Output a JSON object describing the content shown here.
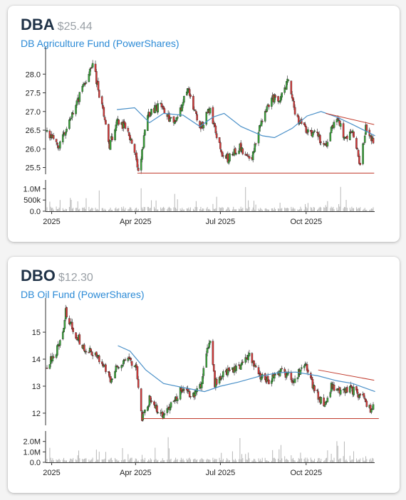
{
  "cards": [
    {
      "ticker": "DBA",
      "price": "$25.44",
      "name": "DB Agriculture Fund (PowerShares)",
      "chart_data": {
        "type": "candlestick",
        "x_range": [
          "2024-12-27",
          "2025-12-12"
        ],
        "x_ticks": [
          {
            "date": "2025-01-01",
            "label": "2025"
          },
          {
            "date": "2025-04-01",
            "label": "Apr 2025"
          },
          {
            "date": "2025-07-01",
            "label": "Jul 2025"
          },
          {
            "date": "2025-10-01",
            "label": "Oct 2025"
          }
        ],
        "price_ticks": [
          {
            "value": 25.5,
            "label": "25.5"
          },
          {
            "value": 26.0,
            "label": "26.0"
          },
          {
            "value": 26.5,
            "label": "26.5"
          },
          {
            "value": 27.0,
            "label": "27.0"
          },
          {
            "value": 27.5,
            "label": "27.5"
          },
          {
            "value": 28.0,
            "label": "28.0"
          }
        ],
        "ylim": [
          25.32,
          28.5
        ],
        "volume_ticks": [
          {
            "value": 0,
            "label": "0.0"
          },
          {
            "value": 500000,
            "label": "500k"
          },
          {
            "value": 1000000,
            "label": "1.0M"
          }
        ],
        "volume_max": 1300000,
        "price_path": [
          [
            "2024-12-27",
            26.45
          ],
          [
            "2025-01-08",
            26.1
          ],
          [
            "2025-01-17",
            26.55
          ],
          [
            "2025-02-03",
            27.6
          ],
          [
            "2025-02-14",
            28.35
          ],
          [
            "2025-02-24",
            27.1
          ],
          [
            "2025-03-04",
            26.1
          ],
          [
            "2025-03-13",
            26.75
          ],
          [
            "2025-03-24",
            26.5
          ],
          [
            "2025-03-31",
            25.95
          ],
          [
            "2025-04-04",
            25.3
          ],
          [
            "2025-04-14",
            26.9
          ],
          [
            "2025-04-28",
            27.2
          ],
          [
            "2025-05-12",
            26.6
          ],
          [
            "2025-05-27",
            27.6
          ],
          [
            "2025-06-09",
            26.5
          ],
          [
            "2025-06-20",
            27.1
          ],
          [
            "2025-07-01",
            25.95
          ],
          [
            "2025-07-09",
            25.75
          ],
          [
            "2025-07-21",
            26.05
          ],
          [
            "2025-08-04",
            25.75
          ],
          [
            "2025-08-12",
            26.6
          ],
          [
            "2025-08-25",
            27.4
          ],
          [
            "2025-09-02",
            27.25
          ],
          [
            "2025-09-12",
            27.9
          ],
          [
            "2025-09-19",
            26.9
          ],
          [
            "2025-10-02",
            26.5
          ],
          [
            "2025-10-13",
            26.35
          ],
          [
            "2025-10-22",
            26.1
          ],
          [
            "2025-11-03",
            26.9
          ],
          [
            "2025-11-12",
            26.2
          ],
          [
            "2025-11-20",
            26.45
          ],
          [
            "2025-11-28",
            25.6
          ],
          [
            "2025-12-04",
            26.55
          ],
          [
            "2025-12-12",
            26.15
          ],
          [
            "2025-12-14",
            25.44
          ]
        ],
        "moving_average": [
          [
            "2025-03-12",
            27.05
          ],
          [
            "2025-03-31",
            27.1
          ],
          [
            "2025-04-16",
            26.7
          ],
          [
            "2025-05-01",
            26.95
          ],
          [
            "2025-05-22",
            26.9
          ],
          [
            "2025-06-09",
            26.6
          ],
          [
            "2025-06-23",
            26.85
          ],
          [
            "2025-07-05",
            26.95
          ],
          [
            "2025-07-23",
            26.6
          ],
          [
            "2025-08-15",
            26.35
          ],
          [
            "2025-08-28",
            26.3
          ],
          [
            "2025-09-16",
            26.55
          ],
          [
            "2025-10-02",
            26.88
          ],
          [
            "2025-10-17",
            27.0
          ],
          [
            "2025-11-03",
            26.85
          ],
          [
            "2025-11-20",
            26.65
          ],
          [
            "2025-12-14",
            26.35
          ]
        ],
        "lines": [
          {
            "color": "#c0392b",
            "from": [
              "2025-04-03",
              25.35
            ],
            "to": [
              "2025-12-13",
              25.35
            ]
          },
          {
            "color": "#c0392b",
            "from": [
              "2025-10-22",
              26.95
            ],
            "to": [
              "2025-12-13",
              26.65
            ]
          }
        ],
        "colors": {
          "up": "#3aa53a",
          "down": "#d43b3b",
          "ma": "#4a90c8",
          "volume": "#b8b8b8"
        }
      }
    },
    {
      "ticker": "DBO",
      "price": "$12.30",
      "name": "DB Oil Fund (PowerShares)",
      "chart_data": {
        "type": "candlestick",
        "x_range": [
          "2024-12-27",
          "2025-12-12"
        ],
        "x_ticks": [
          {
            "date": "2025-01-01",
            "label": "2025"
          },
          {
            "date": "2025-04-01",
            "label": "Apr 2025"
          },
          {
            "date": "2025-07-01",
            "label": "Jul 2025"
          },
          {
            "date": "2025-10-01",
            "label": "Oct 2025"
          }
        ],
        "price_ticks": [
          {
            "value": 12,
            "label": "12"
          },
          {
            "value": 13,
            "label": "13"
          },
          {
            "value": 14,
            "label": "14"
          },
          {
            "value": 15,
            "label": "15"
          }
        ],
        "ylim": [
          11.55,
          15.95
        ],
        "volume_ticks": [
          {
            "value": 0,
            "label": "0.0"
          },
          {
            "value": 1000000,
            "label": "1.0M"
          },
          {
            "value": 2000000,
            "label": "2.0M"
          }
        ],
        "volume_max": 2800000,
        "price_path": [
          [
            "2024-12-27",
            13.8
          ],
          [
            "2025-01-06",
            14.3
          ],
          [
            "2025-01-13",
            14.9
          ],
          [
            "2025-01-16",
            15.75
          ],
          [
            "2025-01-25",
            15.0
          ],
          [
            "2025-02-06",
            14.4
          ],
          [
            "2025-02-20",
            14.1
          ],
          [
            "2025-03-05",
            13.3
          ],
          [
            "2025-03-14",
            13.8
          ],
          [
            "2025-03-24",
            14.1
          ],
          [
            "2025-04-02",
            13.6
          ],
          [
            "2025-04-08",
            11.8
          ],
          [
            "2025-04-16",
            12.5
          ],
          [
            "2025-04-28",
            11.9
          ],
          [
            "2025-05-08",
            12.2
          ],
          [
            "2025-05-20",
            12.9
          ],
          [
            "2025-06-02",
            12.6
          ],
          [
            "2025-06-10",
            13.1
          ],
          [
            "2025-06-20",
            14.8
          ],
          [
            "2025-06-25",
            13.1
          ],
          [
            "2025-07-07",
            13.5
          ],
          [
            "2025-07-22",
            13.7
          ],
          [
            "2025-07-31",
            14.2
          ],
          [
            "2025-08-11",
            13.4
          ],
          [
            "2025-08-21",
            13.2
          ],
          [
            "2025-09-04",
            13.6
          ],
          [
            "2025-09-19",
            13.2
          ],
          [
            "2025-09-29",
            13.9
          ],
          [
            "2025-10-09",
            12.9
          ],
          [
            "2025-10-21",
            12.3
          ],
          [
            "2025-10-28",
            13.0
          ],
          [
            "2025-11-06",
            12.8
          ],
          [
            "2025-11-18",
            12.9
          ],
          [
            "2025-12-01",
            12.6
          ],
          [
            "2025-12-09",
            12.1
          ],
          [
            "2025-12-14",
            12.3
          ]
        ],
        "moving_average": [
          [
            "2025-03-13",
            14.5
          ],
          [
            "2025-03-26",
            14.3
          ],
          [
            "2025-04-12",
            13.6
          ],
          [
            "2025-05-01",
            13.1
          ],
          [
            "2025-05-22",
            12.95
          ],
          [
            "2025-06-14",
            12.8
          ],
          [
            "2025-07-01",
            13.0
          ],
          [
            "2025-07-20",
            13.15
          ],
          [
            "2025-08-10",
            13.35
          ],
          [
            "2025-09-01",
            13.5
          ],
          [
            "2025-09-20",
            13.52
          ],
          [
            "2025-10-14",
            13.38
          ],
          [
            "2025-11-03",
            13.2
          ],
          [
            "2025-11-20",
            13.1
          ],
          [
            "2025-12-14",
            12.8
          ]
        ],
        "lines": [
          {
            "color": "#c0392b",
            "from": [
              "2025-04-08",
              11.8
            ],
            "to": [
              "2025-12-18",
              11.8
            ]
          },
          {
            "color": "#c0392b",
            "from": [
              "2025-10-14",
              13.6
            ],
            "to": [
              "2025-12-13",
              13.22
            ]
          }
        ],
        "colors": {
          "up": "#3aa53a",
          "down": "#d43b3b",
          "ma": "#4a90c8",
          "volume": "#b8b8b8"
        }
      }
    }
  ]
}
